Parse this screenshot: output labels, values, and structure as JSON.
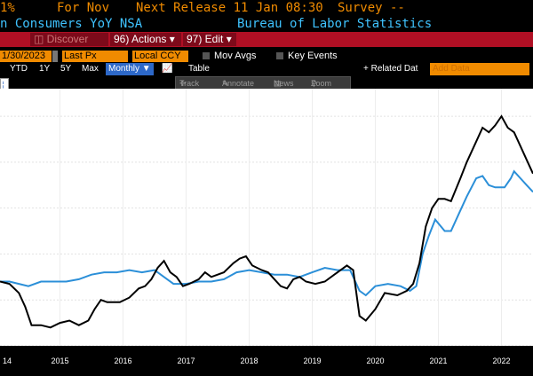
{
  "header": {
    "value_tail": "1%",
    "for_label": "For Nov",
    "next_release": "Next Release 11 Jan 08:30",
    "survey": "Survey --",
    "series_name": "n Consumers YoY NSA",
    "source": "Bureau of Labor Statistics"
  },
  "menubar": {
    "discover": "Discover",
    "actions": "96) Actions ▾",
    "edit": "97) Edit ▾"
  },
  "controls": {
    "date": "1/30/2023",
    "price_field": "Last Px",
    "currency": "Local CCY",
    "mov_avgs": "Mov Avgs",
    "key_events": "Key Events"
  },
  "timebar": {
    "ytd": "YTD",
    "y1": "1Y",
    "y5": "5Y",
    "max": "Max",
    "frequency": "Monthly ▼",
    "table": "Table",
    "related": "+ Related Dat",
    "add_data": "Add Data"
  },
  "toolstrip": {
    "track": "Track",
    "annotate": "Annotate",
    "news": "News",
    "zoom": "Zoom"
  },
  "chart_data": {
    "type": "line",
    "x_ticks": [
      "14",
      "2015",
      "2016",
      "2017",
      "2018",
      "2019",
      "2020",
      "2021",
      "2022"
    ],
    "colors": {
      "headline": "#000000",
      "core": "#2b8fd8"
    },
    "headline": [
      [
        2014.55,
        1.8
      ],
      [
        2014.7,
        1.7
      ],
      [
        2014.85,
        1.3
      ],
      [
        2014.95,
        0.7
      ],
      [
        2015.05,
        -0.1
      ],
      [
        2015.2,
        -0.1
      ],
      [
        2015.35,
        -0.2
      ],
      [
        2015.5,
        0.0
      ],
      [
        2015.65,
        0.1
      ],
      [
        2015.8,
        -0.1
      ],
      [
        2015.95,
        0.1
      ],
      [
        2016.05,
        0.6
      ],
      [
        2016.15,
        1.0
      ],
      [
        2016.25,
        0.9
      ],
      [
        2016.35,
        0.9
      ],
      [
        2016.45,
        0.9
      ],
      [
        2016.6,
        1.1
      ],
      [
        2016.75,
        1.5
      ],
      [
        2016.85,
        1.6
      ],
      [
        2016.95,
        1.9
      ],
      [
        2017.05,
        2.4
      ],
      [
        2017.15,
        2.7
      ],
      [
        2017.25,
        2.2
      ],
      [
        2017.35,
        2.0
      ],
      [
        2017.45,
        1.6
      ],
      [
        2017.55,
        1.7
      ],
      [
        2017.7,
        1.9
      ],
      [
        2017.8,
        2.2
      ],
      [
        2017.9,
        2.0
      ],
      [
        2018.0,
        2.1
      ],
      [
        2018.1,
        2.2
      ],
      [
        2018.25,
        2.6
      ],
      [
        2018.35,
        2.8
      ],
      [
        2018.45,
        2.9
      ],
      [
        2018.55,
        2.5
      ],
      [
        2018.7,
        2.3
      ],
      [
        2018.8,
        2.2
      ],
      [
        2018.9,
        1.9
      ],
      [
        2019.0,
        1.6
      ],
      [
        2019.1,
        1.5
      ],
      [
        2019.2,
        1.9
      ],
      [
        2019.3,
        2.0
      ],
      [
        2019.4,
        1.8
      ],
      [
        2019.55,
        1.7
      ],
      [
        2019.7,
        1.8
      ],
      [
        2019.85,
        2.1
      ],
      [
        2019.95,
        2.3
      ],
      [
        2020.05,
        2.5
      ],
      [
        2020.15,
        2.3
      ],
      [
        2020.25,
        0.3
      ],
      [
        2020.35,
        0.1
      ],
      [
        2020.5,
        0.6
      ],
      [
        2020.65,
        1.3
      ],
      [
        2020.85,
        1.2
      ],
      [
        2021.0,
        1.4
      ],
      [
        2021.1,
        1.7
      ],
      [
        2021.2,
        2.6
      ],
      [
        2021.3,
        4.2
      ],
      [
        2021.4,
        5.0
      ],
      [
        2021.5,
        5.4
      ],
      [
        2021.6,
        5.4
      ],
      [
        2021.7,
        5.3
      ],
      [
        2021.85,
        6.3
      ],
      [
        2021.95,
        7.0
      ],
      [
        2022.1,
        7.9
      ],
      [
        2022.2,
        8.5
      ],
      [
        2022.3,
        8.3
      ],
      [
        2022.4,
        8.6
      ],
      [
        2022.5,
        9.0
      ],
      [
        2022.6,
        8.5
      ],
      [
        2022.7,
        8.3
      ],
      [
        2022.8,
        7.7
      ],
      [
        2022.9,
        7.1
      ],
      [
        2023.0,
        6.5
      ]
    ],
    "core": [
      [
        2014.55,
        1.8
      ],
      [
        2014.7,
        1.8
      ],
      [
        2014.85,
        1.7
      ],
      [
        2015.0,
        1.6
      ],
      [
        2015.2,
        1.8
      ],
      [
        2015.4,
        1.8
      ],
      [
        2015.6,
        1.8
      ],
      [
        2015.8,
        1.9
      ],
      [
        2016.0,
        2.1
      ],
      [
        2016.2,
        2.2
      ],
      [
        2016.4,
        2.2
      ],
      [
        2016.6,
        2.3
      ],
      [
        2016.8,
        2.2
      ],
      [
        2017.0,
        2.3
      ],
      [
        2017.15,
        2.0
      ],
      [
        2017.3,
        1.7
      ],
      [
        2017.5,
        1.7
      ],
      [
        2017.7,
        1.8
      ],
      [
        2017.9,
        1.8
      ],
      [
        2018.1,
        1.9
      ],
      [
        2018.3,
        2.2
      ],
      [
        2018.5,
        2.3
      ],
      [
        2018.7,
        2.2
      ],
      [
        2018.9,
        2.1
      ],
      [
        2019.1,
        2.1
      ],
      [
        2019.3,
        2.0
      ],
      [
        2019.5,
        2.2
      ],
      [
        2019.7,
        2.4
      ],
      [
        2019.9,
        2.3
      ],
      [
        2020.1,
        2.3
      ],
      [
        2020.25,
        1.4
      ],
      [
        2020.35,
        1.2
      ],
      [
        2020.5,
        1.6
      ],
      [
        2020.7,
        1.7
      ],
      [
        2020.9,
        1.6
      ],
      [
        2021.05,
        1.4
      ],
      [
        2021.15,
        1.6
      ],
      [
        2021.25,
        3.0
      ],
      [
        2021.35,
        3.8
      ],
      [
        2021.45,
        4.5
      ],
      [
        2021.6,
        4.0
      ],
      [
        2021.7,
        4.0
      ],
      [
        2021.85,
        4.9
      ],
      [
        2021.95,
        5.5
      ],
      [
        2022.1,
        6.3
      ],
      [
        2022.2,
        6.4
      ],
      [
        2022.3,
        6.0
      ],
      [
        2022.4,
        5.9
      ],
      [
        2022.55,
        5.9
      ],
      [
        2022.65,
        6.3
      ],
      [
        2022.7,
        6.6
      ],
      [
        2022.8,
        6.3
      ],
      [
        2022.9,
        6.0
      ],
      [
        2023.0,
        5.7
      ]
    ]
  }
}
